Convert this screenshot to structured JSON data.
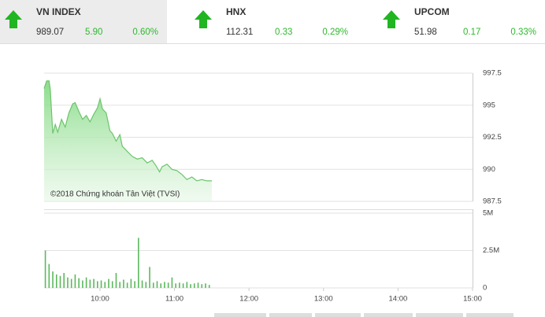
{
  "header": {
    "tiles": [
      {
        "name": "VN INDEX",
        "value": "989.07",
        "change": "5.90",
        "percent": "0.60%"
      },
      {
        "name": "HNX",
        "value": "112.31",
        "change": "0.33",
        "percent": "0.29%"
      },
      {
        "name": "UPCOM",
        "value": "51.98",
        "change": "0.17",
        "percent": "0.33%"
      }
    ]
  },
  "chart_data": [
    {
      "type": "area",
      "color": "#6cc46c",
      "annotation": "©2018 Chứng khoán Tân Việt (TVSI)",
      "x": [
        "09:15",
        "09:17",
        "09:19",
        "09:20",
        "09:22",
        "09:24",
        "09:26",
        "09:29",
        "09:32",
        "09:35",
        "09:38",
        "09:40",
        "09:43",
        "09:46",
        "09:49",
        "09:52",
        "09:55",
        "09:58",
        "10:00",
        "10:02",
        "10:05",
        "10:08",
        "10:10",
        "10:13",
        "10:16",
        "10:18",
        "10:22",
        "10:26",
        "10:30",
        "10:34",
        "10:38",
        "10:42",
        "10:45",
        "10:48",
        "10:50",
        "10:54",
        "10:58",
        "11:02",
        "11:06",
        "11:10",
        "11:14",
        "11:18",
        "11:22",
        "11:26",
        "11:30"
      ],
      "values": [
        996.3,
        996.9,
        996.9,
        996.2,
        992.8,
        993.5,
        992.9,
        993.9,
        993.3,
        994.4,
        995.1,
        995.2,
        994.5,
        993.9,
        994.2,
        993.7,
        994.3,
        994.8,
        995.5,
        994.7,
        994.4,
        993.0,
        992.8,
        992.2,
        992.7,
        991.8,
        991.4,
        991.0,
        990.8,
        990.9,
        990.5,
        990.7,
        990.3,
        989.8,
        990.2,
        990.4,
        990.0,
        989.9,
        989.6,
        989.2,
        989.4,
        989.1,
        989.2,
        989.1,
        989.1
      ],
      "xlim": [
        "09:15",
        "15:00"
      ],
      "ylim": [
        987.5,
        997.5
      ],
      "yticks": [
        987.5,
        990,
        992.5,
        995,
        997.5
      ],
      "grid": true
    },
    {
      "type": "bar",
      "color": "#5cb85c",
      "x": [
        "09:16",
        "09:19",
        "09:22",
        "09:25",
        "09:28",
        "09:31",
        "09:34",
        "09:37",
        "09:40",
        "09:43",
        "09:46",
        "09:49",
        "09:52",
        "09:55",
        "09:58",
        "10:01",
        "10:04",
        "10:07",
        "10:10",
        "10:13",
        "10:16",
        "10:19",
        "10:22",
        "10:25",
        "10:28",
        "10:31",
        "10:34",
        "10:37",
        "10:40",
        "10:43",
        "10:46",
        "10:49",
        "10:52",
        "10:55",
        "10:58",
        "11:01",
        "11:04",
        "11:07",
        "11:10",
        "11:13",
        "11:16",
        "11:19",
        "11:22",
        "11:25",
        "11:28"
      ],
      "values": [
        2500000,
        1600000,
        1100000,
        900000,
        800000,
        1000000,
        700000,
        600000,
        900000,
        650000,
        500000,
        700000,
        550000,
        600000,
        450000,
        500000,
        400000,
        600000,
        450000,
        1000000,
        400000,
        550000,
        350000,
        600000,
        450000,
        3350000,
        500000,
        400000,
        1400000,
        350000,
        450000,
        300000,
        400000,
        350000,
        700000,
        300000,
        350000,
        300000,
        400000,
        250000,
        300000,
        350000,
        250000,
        300000,
        200000
      ],
      "xlim": [
        "09:15",
        "15:00"
      ],
      "xticks": [
        "10:00",
        "11:00",
        "12:00",
        "13:00",
        "14:00",
        "15:00"
      ],
      "ylim": [
        0,
        5000000
      ],
      "yticks": [
        {
          "value": 0,
          "label": "0"
        },
        {
          "value": 2500000,
          "label": "2.5M"
        },
        {
          "value": 5000000,
          "label": "5M"
        }
      ],
      "grid": true
    }
  ]
}
